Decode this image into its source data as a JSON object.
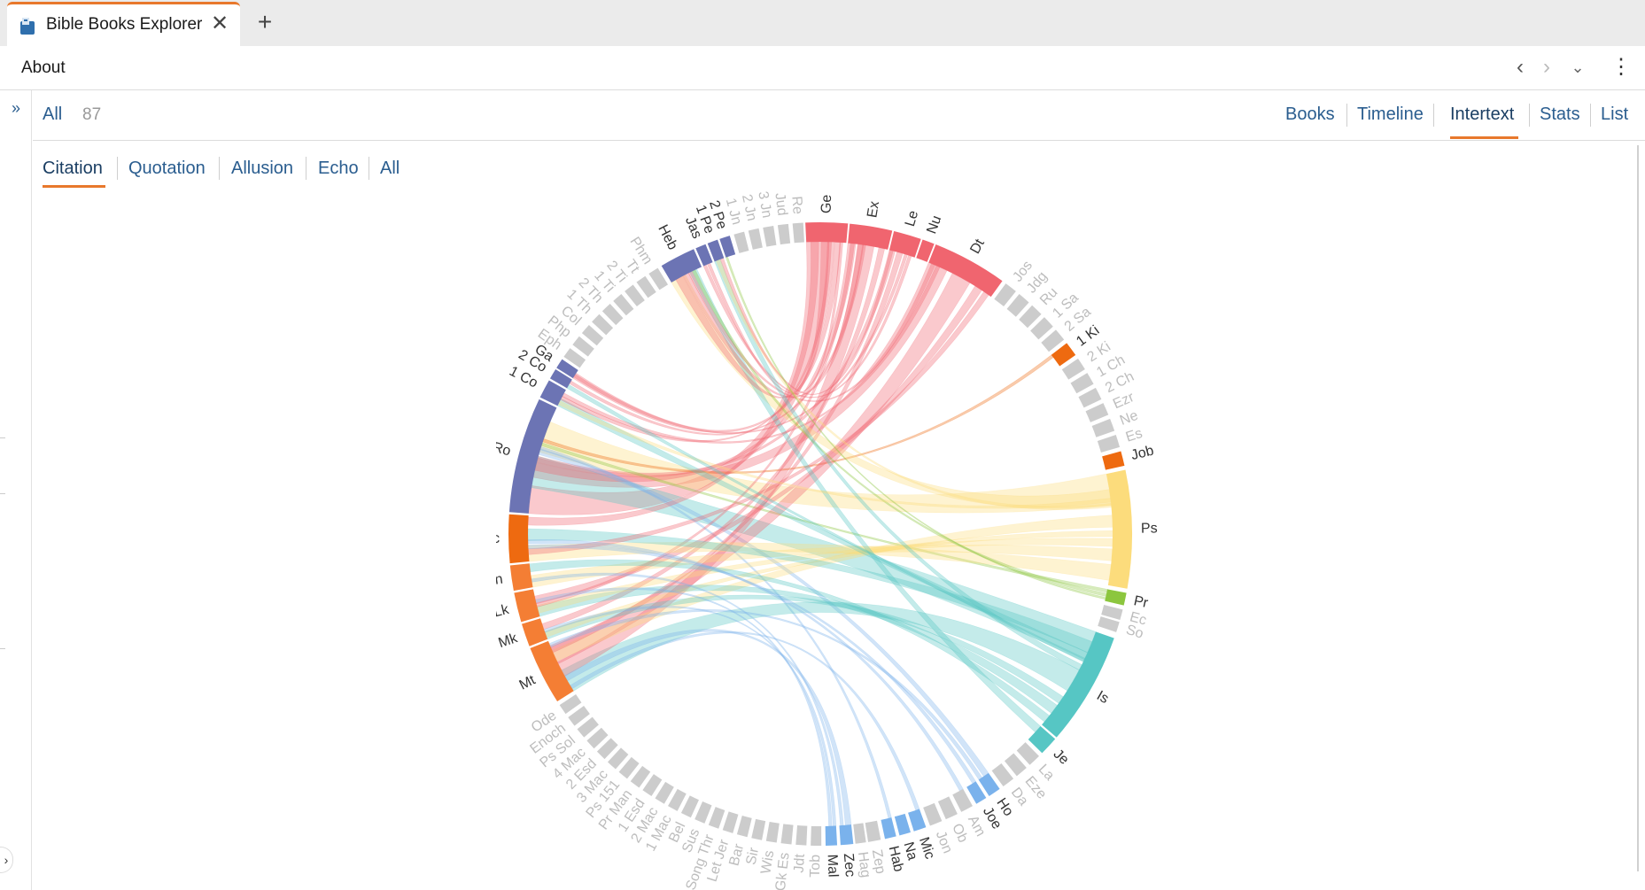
{
  "tab": {
    "title": "Bible Books Explorer",
    "close": "✕",
    "add": "+"
  },
  "page": {
    "title": "About"
  },
  "nav": {
    "back": "‹",
    "forward": "›",
    "dropdown": "⌄",
    "more": "⋮"
  },
  "sidebar": {
    "expand": "»",
    "collapse": "›"
  },
  "filter": {
    "all_label": "All",
    "count": "87"
  },
  "views": {
    "tabs": [
      {
        "label": "Books"
      },
      {
        "label": "Timeline"
      },
      {
        "label": "Intertext",
        "active": true
      },
      {
        "label": "Stats"
      },
      {
        "label": "List"
      }
    ]
  },
  "subtabs": {
    "tabs": [
      {
        "label": "Citation",
        "active": true
      },
      {
        "label": "Quotation"
      },
      {
        "label": "Allusion"
      },
      {
        "label": "Echo"
      },
      {
        "label": "All"
      }
    ]
  },
  "colors": {
    "accent": "#e8782c",
    "link": "#2a5d8f",
    "torah": "#f0656f",
    "history": "#ee6a10",
    "poetry": "#fcdc7c",
    "wisdom": "#8cc63e",
    "major_prophets": "#56c6c4",
    "minor_prophets": "#7ab2ec",
    "gospels": "#f47e34",
    "acts": "#ee6a10",
    "epistles": "#6c74b4",
    "inactive": "#cccccc"
  },
  "chart_data": {
    "type": "chord",
    "segments": [
      {
        "label": "Ge",
        "group": "torah",
        "active": true,
        "start": 0.0,
        "end": 10.0
      },
      {
        "label": "Ex",
        "group": "torah",
        "active": true,
        "start": 10.4,
        "end": 20.5
      },
      {
        "label": "Le",
        "group": "torah",
        "active": true,
        "start": 20.9,
        "end": 27.5
      },
      {
        "label": "Nu",
        "group": "torah",
        "active": true,
        "start": 27.9,
        "end": 30.8
      },
      {
        "label": "Dt",
        "group": "torah",
        "active": true,
        "start": 31.2,
        "end": 49.0
      },
      {
        "label": "Jos",
        "group": "history",
        "active": false,
        "start": 50.0,
        "end": 53.0
      },
      {
        "label": "Jdg",
        "group": "history",
        "active": false,
        "start": 54.0,
        "end": 57.0
      },
      {
        "label": "Ru",
        "group": "history",
        "active": false,
        "start": 58.0,
        "end": 61.0
      },
      {
        "label": "1 Sa",
        "group": "history",
        "active": false,
        "start": 62.0,
        "end": 65.0
      },
      {
        "label": "2 Sa",
        "group": "history",
        "active": false,
        "start": 66.0,
        "end": 69.0
      },
      {
        "label": "1 Ki",
        "group": "history",
        "active": true,
        "start": 70.0,
        "end": 73.5
      },
      {
        "label": "2 Ki",
        "group": "history",
        "active": false,
        "start": 74.5,
        "end": 77.5
      },
      {
        "label": "1 Ch",
        "group": "history",
        "active": false,
        "start": 78.5,
        "end": 81.5
      },
      {
        "label": "2 Ch",
        "group": "history",
        "active": false,
        "start": 82.5,
        "end": 85.5
      },
      {
        "label": "Ezr",
        "group": "history",
        "active": false,
        "start": 86.5,
        "end": 89.5
      },
      {
        "label": "Ne",
        "group": "history",
        "active": false,
        "start": 90.5,
        "end": 93.5
      },
      {
        "label": "Es",
        "group": "history",
        "active": false,
        "start": 94.5,
        "end": 97.5
      },
      {
        "label": "Job",
        "group": "history",
        "active": true,
        "start": 98.5,
        "end": 102.0
      },
      {
        "label": "Ps",
        "group": "poetry",
        "active": true,
        "start": 103.0,
        "end": 131.0
      },
      {
        "label": "Pr",
        "group": "wisdom",
        "active": true,
        "start": 132.0,
        "end": 135.0
      },
      {
        "label": "Ec",
        "group": "poetry",
        "active": false,
        "start": 136.0,
        "end": 138.5
      },
      {
        "label": "So",
        "group": "poetry",
        "active": false,
        "start": 139.0,
        "end": 141.5
      },
      {
        "label": "Is",
        "group": "major_prophets",
        "active": true,
        "start": 143.0,
        "end": 170.0
      },
      {
        "label": "Je",
        "group": "major_prophets",
        "active": true,
        "start": 170.5,
        "end": 175.0
      },
      {
        "label": "La",
        "group": "major_prophets",
        "active": false,
        "start": 176.0,
        "end": 179.0
      },
      {
        "label": "Eze",
        "group": "major_prophets",
        "active": false,
        "start": 180.0,
        "end": 183.0
      },
      {
        "label": "Da",
        "group": "major_prophets",
        "active": false,
        "start": 184.0,
        "end": 187.0
      },
      {
        "label": "Ho",
        "group": "minor_prophets",
        "active": true,
        "start": 188.0,
        "end": 191.0
      },
      {
        "label": "Joe",
        "group": "minor_prophets",
        "active": true,
        "start": 191.8,
        "end": 194.5
      },
      {
        "label": "Am",
        "group": "minor_prophets",
        "active": false,
        "start": 195.5,
        "end": 198.5
      },
      {
        "label": "Ob",
        "group": "minor_prophets",
        "active": false,
        "start": 199.5,
        "end": 202.5
      },
      {
        "label": "Jon",
        "group": "minor_prophets",
        "active": false,
        "start": 203.5,
        "end": 206.5
      },
      {
        "label": "Mic",
        "group": "minor_prophets",
        "active": true,
        "start": 207.5,
        "end": 210.5
      },
      {
        "label": "Na",
        "group": "minor_prophets",
        "active": true,
        "start": 211.3,
        "end": 214.0
      },
      {
        "label": "Hab",
        "group": "minor_prophets",
        "active": true,
        "start": 214.8,
        "end": 217.5
      },
      {
        "label": "Zep",
        "group": "minor_prophets",
        "active": false,
        "start": 218.5,
        "end": 221.5
      },
      {
        "label": "Hag",
        "group": "minor_prophets",
        "active": false,
        "start": 222.0,
        "end": 224.5
      },
      {
        "label": "Zec",
        "group": "minor_prophets",
        "active": true,
        "start": 225.0,
        "end": 228.0
      },
      {
        "label": "Mal",
        "group": "minor_prophets",
        "active": true,
        "start": 228.8,
        "end": 231.5
      },
      {
        "label": "Tob",
        "group": "other",
        "active": false,
        "start": 232.5,
        "end": 235.0
      },
      {
        "label": "Jdt",
        "group": "other",
        "active": false,
        "start": 236.0,
        "end": 238.5
      },
      {
        "label": "Gk Es",
        "group": "other",
        "active": false,
        "start": 239.5,
        "end": 242.0
      },
      {
        "label": "Wis",
        "group": "other",
        "active": false,
        "start": 243.0,
        "end": 245.5
      },
      {
        "label": "Sir",
        "group": "other",
        "active": false,
        "start": 246.5,
        "end": 249.0
      },
      {
        "label": "Bar",
        "group": "other",
        "active": false,
        "start": 250.0,
        "end": 252.5
      },
      {
        "label": "Let Jer",
        "group": "other",
        "active": false,
        "start": 253.5,
        "end": 256.0
      },
      {
        "label": "Song Thr",
        "group": "other",
        "active": false,
        "start": 257.0,
        "end": 259.5
      },
      {
        "label": "Sus",
        "group": "other",
        "active": false,
        "start": 260.5,
        "end": 263.0
      },
      {
        "label": "Bel",
        "group": "other",
        "active": false,
        "start": 264.0,
        "end": 266.5
      },
      {
        "label": "1 Mac",
        "group": "other",
        "active": false,
        "start": 267.5,
        "end": 270.0
      },
      {
        "label": "2 Mac",
        "group": "other",
        "active": false,
        "start": 271.0,
        "end": 273.5
      },
      {
        "label": "1 Esd",
        "group": "other",
        "active": false,
        "start": 274.5,
        "end": 277.0
      },
      {
        "label": "Pr Man",
        "group": "other",
        "active": false,
        "start": 278.0,
        "end": 280.5
      },
      {
        "label": "Ps 151",
        "group": "other",
        "active": false,
        "start": 281.5,
        "end": 284.0
      },
      {
        "label": "3 Mac",
        "group": "other",
        "active": false,
        "start": 285.0,
        "end": 287.5
      },
      {
        "label": "2 Esd",
        "group": "other",
        "active": false,
        "start": 288.5,
        "end": 291.0
      },
      {
        "label": "4 Mac",
        "group": "other",
        "active": false,
        "start": 292.0,
        "end": 294.5
      },
      {
        "label": "Ps Sol",
        "group": "other",
        "active": false,
        "start": 295.5,
        "end": 298.0
      },
      {
        "label": "Enoch",
        "group": "other",
        "active": false,
        "start": 299.0,
        "end": 301.5
      },
      {
        "label": "Ode",
        "group": "other",
        "active": false,
        "start": 302.5,
        "end": 305.0
      },
      {
        "label": "Mt",
        "group": "gospels",
        "active": true,
        "start": 306.0,
        "end": 320.0
      },
      {
        "label": "Mk",
        "group": "gospels",
        "active": true,
        "start": 320.5,
        "end": 326.0
      },
      {
        "label": "Lk",
        "group": "gospels",
        "active": true,
        "start": 326.5,
        "end": 333.5
      },
      {
        "label": "Jn",
        "group": "gospels",
        "active": true,
        "start": 334.0,
        "end": 340.0
      },
      {
        "label": "Ac",
        "group": "acts",
        "active": true,
        "start": 340.5,
        "end": 352.0
      },
      {
        "label": "Ro",
        "group": "epistles",
        "active": true,
        "start": 352.5,
        "end": 380.0
      },
      {
        "label": "1 Co",
        "group": "epistles",
        "active": true,
        "start": 380.5,
        "end": 385.0
      },
      {
        "label": "2 Co",
        "group": "epistles",
        "active": true,
        "start": 385.5,
        "end": 388.0
      },
      {
        "label": "Ga",
        "group": "epistles",
        "active": true,
        "start": 388.4,
        "end": 390.8
      },
      {
        "label": "Eph",
        "group": "epistles",
        "active": false,
        "start": 391.5,
        "end": 394.0
      },
      {
        "label": "Php",
        "group": "epistles",
        "active": false,
        "start": 395.0,
        "end": 397.5
      },
      {
        "label": "Col",
        "group": "epistles",
        "active": false,
        "start": 398.5,
        "end": 401.0
      },
      {
        "label": "1 Th",
        "group": "epistles",
        "active": false,
        "start": 402.0,
        "end": 404.5
      },
      {
        "label": "2 Th",
        "group": "epistles",
        "active": false,
        "start": 405.5,
        "end": 408.0
      },
      {
        "label": "1 Ti",
        "group": "epistles",
        "active": false,
        "start": 409.0,
        "end": 411.5
      },
      {
        "label": "2 Ti",
        "group": "epistles",
        "active": false,
        "start": 412.5,
        "end": 415.0
      },
      {
        "label": "Tt",
        "group": "epistles",
        "active": false,
        "start": 416.0,
        "end": 418.5
      },
      {
        "label": "Phm",
        "group": "epistles",
        "active": false,
        "start": 419.5,
        "end": 422.0
      },
      {
        "label": "Heb",
        "group": "epistles",
        "active": true,
        "start": 423.0,
        "end": 431.5
      },
      {
        "label": "Jas",
        "group": "epistles",
        "active": true,
        "start": 432.0,
        "end": 434.5
      },
      {
        "label": "1 Pe",
        "group": "epistles",
        "active": true,
        "start": 435.0,
        "end": 437.5
      },
      {
        "label": "2 Pe",
        "group": "epistles",
        "active": true,
        "start": 438.0,
        "end": 440.5
      },
      {
        "label": "1 Jn",
        "group": "epistles",
        "active": false,
        "start": 441.5,
        "end": 444.0
      },
      {
        "label": "2 Jn",
        "group": "epistles",
        "active": false,
        "start": 445.0,
        "end": 447.5
      },
      {
        "label": "3 Jn",
        "group": "epistles",
        "active": false,
        "start": 448.5,
        "end": 451.0
      },
      {
        "label": "Jud",
        "group": "epistles",
        "active": false,
        "start": 452.0,
        "end": 454.5
      },
      {
        "label": "Re",
        "group": "epistles",
        "active": false,
        "start": 455.5,
        "end": 458.0
      }
    ],
    "ribbons": [
      {
        "from": "Ro",
        "to": "Ge",
        "color": "torah",
        "width": 7
      },
      {
        "from": "Ro",
        "to": "Dt",
        "color": "torah",
        "width": 5
      },
      {
        "from": "Ro",
        "to": "Ps",
        "color": "poetry",
        "width": 8
      },
      {
        "from": "Ro",
        "to": "Is",
        "color": "major_prophets",
        "width": 8
      },
      {
        "from": "Ro",
        "to": "Ex",
        "color": "torah",
        "width": 2
      },
      {
        "from": "Ro",
        "to": "Le",
        "color": "torah",
        "width": 1.5
      },
      {
        "from": "Ro",
        "to": "Ho",
        "color": "minor_prophets",
        "width": 1.5
      },
      {
        "from": "Ro",
        "to": "Hab",
        "color": "minor_prophets",
        "width": 0.8
      },
      {
        "from": "Ro",
        "to": "Pr",
        "color": "wisdom",
        "width": 0.8
      },
      {
        "from": "Ro",
        "to": "1 Ki",
        "color": "history",
        "width": 0.8
      },
      {
        "from": "Mt",
        "to": "Is",
        "color": "major_prophets",
        "width": 6
      },
      {
        "from": "Mt",
        "to": "Dt",
        "color": "torah",
        "width": 5
      },
      {
        "from": "Mt",
        "to": "Ex",
        "color": "torah",
        "width": 4
      },
      {
        "from": "Mt",
        "to": "Ps",
        "color": "poetry",
        "width": 3
      },
      {
        "from": "Mt",
        "to": "Le",
        "color": "torah",
        "width": 1.5
      },
      {
        "from": "Mt",
        "to": "Ho",
        "color": "minor_prophets",
        "width": 1
      },
      {
        "from": "Mt",
        "to": "Mic",
        "color": "minor_prophets",
        "width": 1
      },
      {
        "from": "Mt",
        "to": "Zec",
        "color": "minor_prophets",
        "width": 1.5
      },
      {
        "from": "Mk",
        "to": "Is",
        "color": "major_prophets",
        "width": 2
      },
      {
        "from": "Mk",
        "to": "Ex",
        "color": "torah",
        "width": 1.5
      },
      {
        "from": "Mk",
        "to": "Ps",
        "color": "poetry",
        "width": 1.5
      },
      {
        "from": "Mk",
        "to": "Mal",
        "color": "minor_prophets",
        "width": 0.8
      },
      {
        "from": "Lk",
        "to": "Is",
        "color": "major_prophets",
        "width": 2.5
      },
      {
        "from": "Lk",
        "to": "Dt",
        "color": "torah",
        "width": 2
      },
      {
        "from": "Lk",
        "to": "Ps",
        "color": "poetry",
        "width": 2
      },
      {
        "from": "Lk",
        "to": "Ex",
        "color": "torah",
        "width": 1
      },
      {
        "from": "Lk",
        "to": "Mal",
        "color": "minor_prophets",
        "width": 0.8
      },
      {
        "from": "Jn",
        "to": "Ps",
        "color": "poetry",
        "width": 3
      },
      {
        "from": "Jn",
        "to": "Is",
        "color": "major_prophets",
        "width": 2
      },
      {
        "from": "Jn",
        "to": "Zec",
        "color": "minor_prophets",
        "width": 0.8
      },
      {
        "from": "Ac",
        "to": "Ps",
        "color": "poetry",
        "width": 4
      },
      {
        "from": "Ac",
        "to": "Is",
        "color": "major_prophets",
        "width": 3
      },
      {
        "from": "Ac",
        "to": "Ge",
        "color": "torah",
        "width": 2
      },
      {
        "from": "Ac",
        "to": "Dt",
        "color": "torah",
        "width": 1.5
      },
      {
        "from": "Ac",
        "to": "Joe",
        "color": "minor_prophets",
        "width": 1
      },
      {
        "from": "Ac",
        "to": "Am",
        "color": "minor_prophets",
        "width": 1
      },
      {
        "from": "Heb",
        "to": "Ps",
        "color": "poetry",
        "width": 4
      },
      {
        "from": "Heb",
        "to": "Je",
        "color": "major_prophets",
        "width": 2
      },
      {
        "from": "Heb",
        "to": "Ge",
        "color": "torah",
        "width": 2
      },
      {
        "from": "Heb",
        "to": "Ex",
        "color": "torah",
        "width": 1.5
      },
      {
        "from": "Heb",
        "to": "Dt",
        "color": "torah",
        "width": 1
      },
      {
        "from": "Heb",
        "to": "Pr",
        "color": "wisdom",
        "width": 0.8
      },
      {
        "from": "1 Co",
        "to": "Is",
        "color": "major_prophets",
        "width": 2
      },
      {
        "from": "1 Co",
        "to": "Dt",
        "color": "torah",
        "width": 1
      },
      {
        "from": "1 Co",
        "to": "Ps",
        "color": "poetry",
        "width": 1
      },
      {
        "from": "1 Co",
        "to": "Ge",
        "color": "torah",
        "width": 1
      },
      {
        "from": "2 Co",
        "to": "Is",
        "color": "major_prophets",
        "width": 1
      },
      {
        "from": "2 Co",
        "to": "Ex",
        "color": "torah",
        "width": 0.8
      },
      {
        "from": "Ga",
        "to": "Ge",
        "color": "torah",
        "width": 1.5
      },
      {
        "from": "Ga",
        "to": "Le",
        "color": "torah",
        "width": 0.8
      },
      {
        "from": "Jas",
        "to": "Le",
        "color": "torah",
        "width": 0.8
      },
      {
        "from": "Jas",
        "to": "Ge",
        "color": "torah",
        "width": 0.8
      },
      {
        "from": "1 Pe",
        "to": "Is",
        "color": "major_prophets",
        "width": 1.5
      },
      {
        "from": "1 Pe",
        "to": "Ps",
        "color": "poetry",
        "width": 1
      },
      {
        "from": "1 Pe",
        "to": "Le",
        "color": "torah",
        "width": 0.8
      },
      {
        "from": "2 Pe",
        "to": "Pr",
        "color": "wisdom",
        "width": 0.5
      }
    ]
  }
}
